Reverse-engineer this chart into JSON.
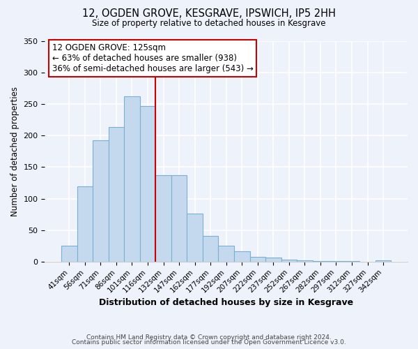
{
  "title": "12, OGDEN GROVE, KESGRAVE, IPSWICH, IP5 2HH",
  "subtitle": "Size of property relative to detached houses in Kesgrave",
  "xlabel": "Distribution of detached houses by size in Kesgrave",
  "ylabel": "Number of detached properties",
  "bar_color": "#c5d9ee",
  "bar_edge_color": "#7aafd4",
  "ylim": [
    0,
    350
  ],
  "yticks": [
    0,
    50,
    100,
    150,
    200,
    250,
    300,
    350
  ],
  "vline_color": "#cc0000",
  "annotation_title": "12 OGDEN GROVE: 125sqm",
  "annotation_line1": "← 63% of detached houses are smaller (938)",
  "annotation_line2": "36% of semi-detached houses are larger (543) →",
  "annotation_box_color": "#ffffff",
  "annotation_box_edge": "#cc0000",
  "footer1": "Contains HM Land Registry data © Crown copyright and database right 2024.",
  "footer2": "Contains public sector information licensed under the Open Government Licence v3.0.",
  "background_color": "#eef2fa",
  "plot_background": "#eef2fa",
  "all_labels": [
    "41sqm",
    "56sqm",
    "71sqm",
    "86sqm",
    "101sqm",
    "116sqm",
    "132sqm",
    "147sqm",
    "162sqm",
    "177sqm",
    "192sqm",
    "207sqm",
    "222sqm",
    "237sqm",
    "252sqm",
    "267sqm",
    "282sqm",
    "297sqm",
    "312sqm",
    "327sqm",
    "342sqm"
  ],
  "all_values": [
    25,
    120,
    193,
    214,
    262,
    247,
    137,
    137,
    76,
    41,
    25,
    16,
    8,
    6,
    3,
    2,
    1,
    1,
    1,
    0,
    2
  ],
  "vline_pos": 6.5
}
